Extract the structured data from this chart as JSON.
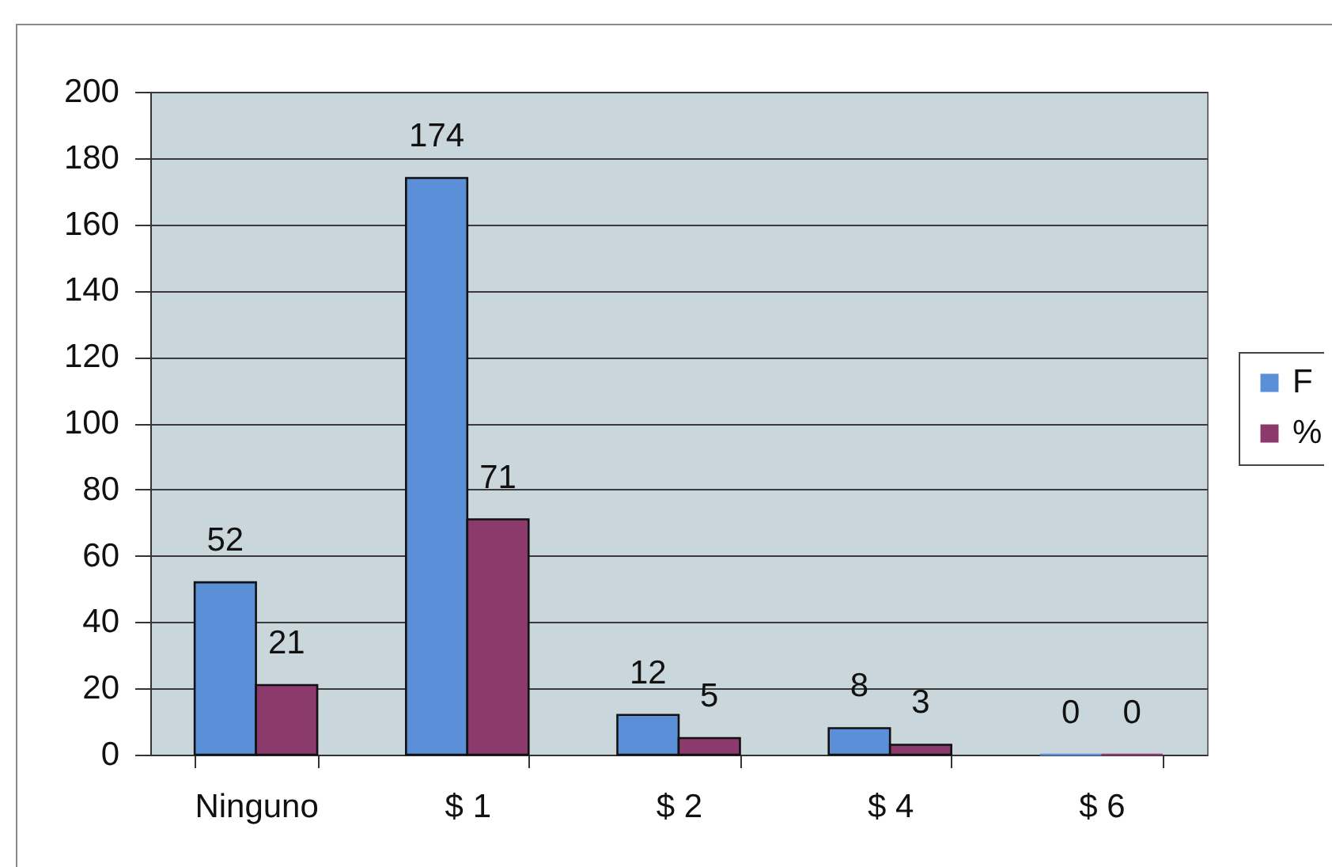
{
  "chart_data": {
    "type": "bar",
    "categories": [
      "Ninguno",
      "$ 1",
      "$ 2",
      "$ 4",
      "$ 6"
    ],
    "series": [
      {
        "name": "F",
        "color": "#5b8fd8",
        "values": [
          52,
          174,
          12,
          8,
          0
        ]
      },
      {
        "name": "%",
        "color": "#8c3a6c",
        "values": [
          21,
          71,
          5,
          3,
          0
        ]
      }
    ],
    "ylim": [
      0,
      200
    ],
    "yticks": [
      0,
      20,
      40,
      60,
      80,
      100,
      120,
      140,
      160,
      180,
      200
    ],
    "grid": "y",
    "legend": "right",
    "data_labels": true
  }
}
